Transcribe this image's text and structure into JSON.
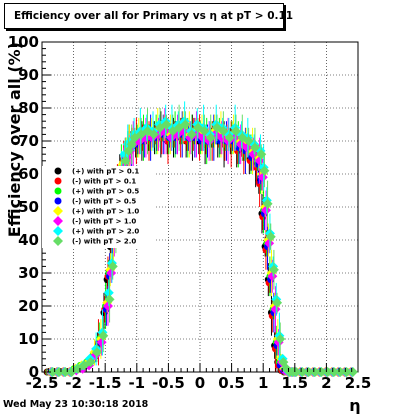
{
  "title": "Efficiency over all for Primary vs  η at pT > 0.11",
  "footer": "Wed May 23 10:30:18 2018",
  "chart_data": {
    "type": "scatter",
    "title": "Efficiency over all for Primary vs  η at pT > 0.11",
    "xlabel": "η",
    "ylabel": "Efficiency over all (%)",
    "xlim": [
      -2.5,
      2.5
    ],
    "ylim": [
      0,
      100
    ],
    "x_ticks": [
      "-2.5",
      "-2",
      "-1.5",
      "-1",
      "-0.5",
      "0",
      "0.5",
      "1",
      "1.5",
      "2",
      "2.5"
    ],
    "y_ticks": [
      "0",
      "10",
      "20",
      "30",
      "40",
      "50",
      "60",
      "70",
      "80",
      "90",
      "100"
    ],
    "grid": true,
    "legend_position": "left",
    "x": [
      -2.375,
      -2.275,
      -2.175,
      -2.075,
      -1.975,
      -1.875,
      -1.775,
      -1.675,
      -1.575,
      -1.475,
      -1.425,
      -1.375,
      -1.325,
      -1.275,
      -1.225,
      -1.175,
      -1.125,
      -1.075,
      -0.975,
      -0.875,
      -0.775,
      -0.675,
      -0.575,
      -0.475,
      -0.375,
      -0.275,
      -0.175,
      -0.075,
      0.025,
      0.125,
      0.225,
      0.325,
      0.425,
      0.525,
      0.625,
      0.725,
      0.825,
      0.925,
      0.975,
      1.025,
      1.075,
      1.125,
      1.175,
      1.225,
      1.275,
      1.325,
      1.375,
      1.425,
      1.475,
      1.575,
      1.675,
      1.775,
      1.875,
      1.975,
      2.075,
      2.175,
      2.275,
      2.375
    ],
    "series": [
      {
        "name": "(+) with pT > 0.1",
        "color": "#000000",
        "shape": "circle",
        "values": [
          0,
          0,
          0,
          0,
          0.5,
          1,
          2,
          4,
          8,
          18,
          28,
          38,
          48,
          55,
          60,
          63,
          66,
          68,
          69,
          70,
          70,
          71,
          72,
          70,
          71,
          72,
          70,
          71,
          70,
          69,
          71,
          70,
          69,
          70,
          68,
          67,
          65,
          63,
          58,
          48,
          38,
          28,
          18,
          8,
          3,
          0.5,
          0,
          0,
          0,
          0,
          0,
          0,
          0,
          0,
          0,
          0,
          0,
          0
        ]
      },
      {
        "name": "(-) with pT > 0.1",
        "color": "#ff0000",
        "shape": "circle",
        "values": [
          0,
          0,
          0,
          0,
          0.5,
          1,
          2,
          4,
          9,
          19,
          29,
          39,
          49,
          56,
          61,
          64,
          66,
          68,
          70,
          71,
          70,
          72,
          71,
          70,
          72,
          71,
          70,
          72,
          71,
          70,
          70,
          71,
          69,
          69,
          67,
          66,
          64,
          62,
          57,
          47,
          37,
          27,
          17,
          7,
          2,
          0.5,
          0,
          0,
          0,
          0,
          0,
          0,
          0,
          0,
          0,
          0,
          0,
          0
        ]
      },
      {
        "name": "(+) with pT > 0.5",
        "color": "#00ff00",
        "shape": "circle",
        "values": [
          0,
          0,
          0,
          0,
          1,
          2,
          3,
          5,
          10,
          20,
          30,
          40,
          50,
          57,
          62,
          65,
          67,
          69,
          70,
          71,
          71,
          72,
          73,
          71,
          72,
          73,
          71,
          72,
          71,
          70,
          72,
          71,
          70,
          71,
          69,
          68,
          66,
          64,
          59,
          49,
          39,
          29,
          19,
          9,
          3,
          1,
          0,
          0,
          0,
          0,
          0,
          0,
          0,
          0,
          0,
          0,
          0,
          0
        ]
      },
      {
        "name": "(-) with pT > 0.5",
        "color": "#0000ff",
        "shape": "circle",
        "values": [
          0,
          0,
          0,
          0,
          0.5,
          1,
          2,
          4,
          9,
          19,
          29,
          39,
          49,
          56,
          61,
          64,
          67,
          68,
          69,
          70,
          71,
          71,
          72,
          71,
          71,
          72,
          71,
          71,
          70,
          70,
          71,
          70,
          70,
          70,
          68,
          67,
          65,
          63,
          58,
          48,
          38,
          28,
          18,
          8,
          2,
          0.5,
          0,
          0,
          0,
          0,
          0,
          0,
          0,
          0,
          0,
          0,
          0,
          0
        ]
      },
      {
        "name": "(+) with pT > 1.0",
        "color": "#ffff00",
        "shape": "diamond",
        "values": [
          0,
          0,
          0,
          0,
          1,
          2,
          3,
          6,
          10,
          21,
          31,
          41,
          51,
          58,
          63,
          66,
          68,
          70,
          71,
          72,
          72,
          73,
          74,
          72,
          73,
          74,
          72,
          73,
          72,
          71,
          73,
          72,
          71,
          72,
          70,
          69,
          67,
          65,
          60,
          50,
          40,
          30,
          20,
          10,
          4,
          1,
          0,
          0,
          0,
          0,
          0,
          0,
          0,
          0,
          0,
          0,
          0,
          0
        ]
      },
      {
        "name": "(-) with pT > 1.0",
        "color": "#ff00ff",
        "shape": "diamond",
        "values": [
          0,
          0,
          0,
          0,
          0.5,
          1,
          2,
          5,
          9,
          20,
          30,
          40,
          50,
          57,
          62,
          65,
          67,
          69,
          70,
          71,
          71,
          72,
          73,
          71,
          72,
          73,
          71,
          72,
          71,
          70,
          72,
          71,
          70,
          71,
          69,
          68,
          66,
          64,
          59,
          49,
          39,
          29,
          19,
          9,
          3,
          0.5,
          0,
          0,
          0,
          0,
          0,
          0,
          0,
          0,
          0,
          0,
          0,
          0
        ]
      },
      {
        "name": "(+) with pT > 2.0",
        "color": "#00ffff",
        "shape": "diamond",
        "values": [
          0,
          0,
          0,
          0,
          1,
          2,
          4,
          7,
          12,
          24,
          33,
          43,
          53,
          60,
          66,
          69,
          70,
          72,
          73,
          74,
          73,
          75,
          76,
          74,
          75,
          76,
          73,
          75,
          74,
          72,
          75,
          74,
          72,
          74,
          72,
          71,
          69,
          67,
          62,
          52,
          42,
          32,
          22,
          11,
          4,
          1,
          0,
          0,
          0,
          0,
          0,
          0,
          0,
          0,
          0,
          0,
          0,
          0
        ]
      },
      {
        "name": "(-) with pT > 2.0",
        "color": "#66dd66",
        "shape": "diamond",
        "values": [
          0,
          0,
          0,
          0,
          1,
          2,
          3,
          6,
          11,
          22,
          32,
          42,
          52,
          59,
          64,
          67,
          69,
          71,
          72,
          73,
          72,
          74,
          75,
          73,
          74,
          75,
          72,
          74,
          73,
          71,
          74,
          73,
          71,
          73,
          71,
          70,
          68,
          66,
          61,
          51,
          41,
          31,
          21,
          10,
          3,
          1,
          0,
          0,
          0,
          0,
          0,
          0,
          0,
          0,
          0,
          0,
          0,
          0
        ]
      }
    ]
  }
}
